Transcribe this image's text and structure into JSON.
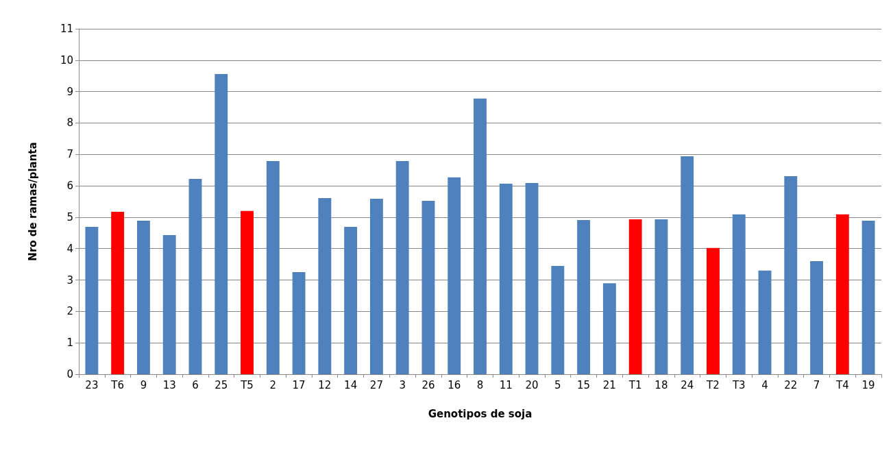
{
  "chart_data": {
    "type": "bar",
    "xlabel": "Genotipos de soja",
    "ylabel": "Nro de ramas/planta",
    "categories": [
      "23",
      "T6",
      "9",
      "13",
      "6",
      "25",
      "T5",
      "2",
      "17",
      "12",
      "14",
      "27",
      "3",
      "26",
      "16",
      "8",
      "11",
      "20",
      "5",
      "15",
      "21",
      "T1",
      "18",
      "24",
      "T2",
      "T3",
      "4",
      "22",
      "7",
      "T4",
      "19"
    ],
    "values": [
      4.69,
      5.17,
      4.89,
      4.43,
      6.22,
      9.56,
      5.2,
      6.79,
      3.25,
      5.61,
      4.69,
      5.59,
      6.79,
      5.52,
      6.27,
      8.78,
      6.07,
      6.09,
      3.45,
      4.91,
      2.9,
      4.93,
      4.93,
      6.94,
      4.02,
      5.09,
      3.3,
      6.31,
      3.6,
      5.09,
      4.89
    ],
    "colors": [
      "#4f81bd",
      "#ff0000",
      "#4f81bd",
      "#4f81bd",
      "#4f81bd",
      "#4f81bd",
      "#ff0000",
      "#4f81bd",
      "#4f81bd",
      "#4f81bd",
      "#4f81bd",
      "#4f81bd",
      "#4f81bd",
      "#4f81bd",
      "#4f81bd",
      "#4f81bd",
      "#4f81bd",
      "#4f81bd",
      "#4f81bd",
      "#4f81bd",
      "#4f81bd",
      "#ff0000",
      "#4f81bd",
      "#4f81bd",
      "#ff0000",
      "#4f81bd",
      "#4f81bd",
      "#4f81bd",
      "#4f81bd",
      "#ff0000",
      "#4f81bd"
    ],
    "ylim": [
      0,
      11
    ],
    "yticks": [
      0,
      1,
      2,
      3,
      4,
      5,
      6,
      7,
      8,
      9,
      10,
      11
    ],
    "grid": "y"
  }
}
